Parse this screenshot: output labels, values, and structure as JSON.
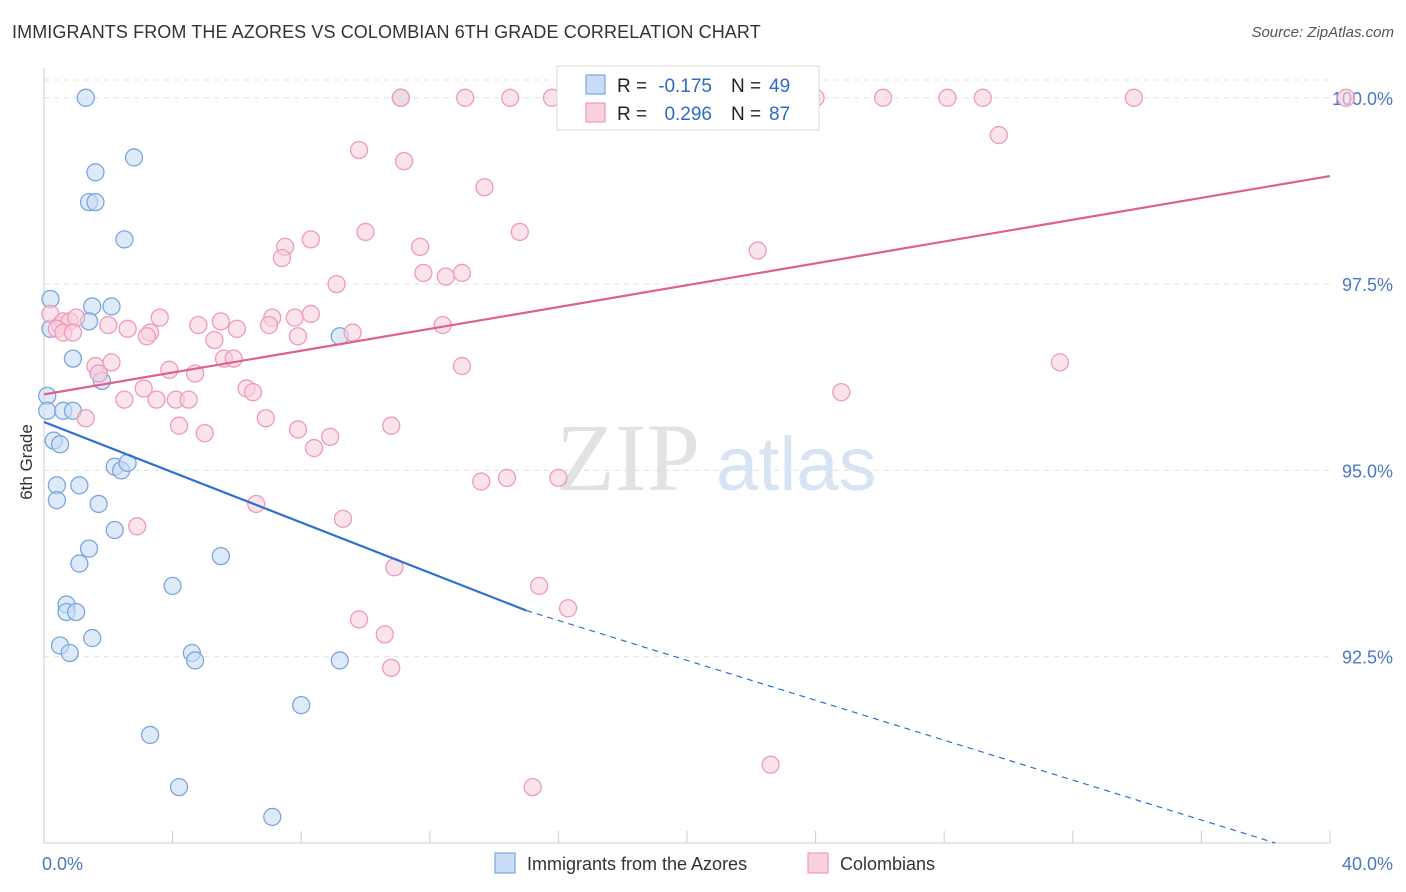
{
  "title": "IMMIGRANTS FROM THE AZORES VS COLOMBIAN 6TH GRADE CORRELATION CHART",
  "source": "Source: ZipAtlas.com",
  "watermark": {
    "zip": "ZIP",
    "atlas": "atlas"
  },
  "chart_data": {
    "type": "scatter",
    "ylabel": "6th Grade",
    "xlim": [
      0,
      40
    ],
    "ylim": [
      90.0,
      100.4
    ],
    "x_tick_labels": [
      {
        "value": 0,
        "label": "0.0%"
      },
      {
        "value": 40,
        "label": "40.0%"
      }
    ],
    "y_ticks": [
      {
        "value": 100.0,
        "label": "100.0%"
      },
      {
        "value": 97.5,
        "label": "97.5%"
      },
      {
        "value": 95.0,
        "label": "95.0%"
      },
      {
        "value": 92.5,
        "label": "92.5%"
      }
    ],
    "series": [
      {
        "name": "Immigrants from the Azores",
        "color": "#7aa6e0",
        "fill": "#c9dcf5",
        "line_color": "#2f6fd0",
        "R": "-0.175",
        "N": "49",
        "trend": {
          "x0": 0,
          "y0": 95.65,
          "x1": 15,
          "y1": 93.12,
          "dash_to_x": 38.3,
          "dash_to_y": 90.0
        },
        "points": [
          [
            1.3,
            100.0
          ],
          [
            11.1,
            100.0
          ],
          [
            2.8,
            99.2
          ],
          [
            1.6,
            99.0
          ],
          [
            1.4,
            98.6
          ],
          [
            1.6,
            98.6
          ],
          [
            2.5,
            98.1
          ],
          [
            0.2,
            97.3
          ],
          [
            1.5,
            97.2
          ],
          [
            2.1,
            97.2
          ],
          [
            0.2,
            96.9
          ],
          [
            1.4,
            97.0
          ],
          [
            9.2,
            96.8
          ],
          [
            0.9,
            96.5
          ],
          [
            1.7,
            96.3
          ],
          [
            1.8,
            96.2
          ],
          [
            0.1,
            96.0
          ],
          [
            0.1,
            95.8
          ],
          [
            0.6,
            95.8
          ],
          [
            0.9,
            95.8
          ],
          [
            0.3,
            95.4
          ],
          [
            0.5,
            95.35
          ],
          [
            2.2,
            95.05
          ],
          [
            2.4,
            95.0
          ],
          [
            2.6,
            95.1
          ],
          [
            0.4,
            94.8
          ],
          [
            1.1,
            94.8
          ],
          [
            0.4,
            94.6
          ],
          [
            1.7,
            94.55
          ],
          [
            2.2,
            94.2
          ],
          [
            1.4,
            93.95
          ],
          [
            1.1,
            93.75
          ],
          [
            5.5,
            93.85
          ],
          [
            4.0,
            93.45
          ],
          [
            0.7,
            93.2
          ],
          [
            0.7,
            93.1
          ],
          [
            1.0,
            93.1
          ],
          [
            1.5,
            92.75
          ],
          [
            0.5,
            92.65
          ],
          [
            0.8,
            92.55
          ],
          [
            4.6,
            92.55
          ],
          [
            4.7,
            92.45
          ],
          [
            9.2,
            92.45
          ],
          [
            8.0,
            91.85
          ],
          [
            3.3,
            91.45
          ],
          [
            4.2,
            90.75
          ],
          [
            7.1,
            90.35
          ]
        ]
      },
      {
        "name": "Colombians",
        "color": "#f09ab8",
        "fill": "#f9d0de",
        "line_color": "#e0608c",
        "R": "0.296",
        "N": "87",
        "trend": {
          "x0": 0,
          "y0": 96.02,
          "x1": 40,
          "y1": 98.95
        },
        "points": [
          [
            11.1,
            100.0
          ],
          [
            13.1,
            100.0
          ],
          [
            14.5,
            100.0
          ],
          [
            15.8,
            100.0
          ],
          [
            19.6,
            100.0
          ],
          [
            24.0,
            100.0
          ],
          [
            26.1,
            100.0
          ],
          [
            28.1,
            100.0
          ],
          [
            29.2,
            100.0
          ],
          [
            33.9,
            100.0
          ],
          [
            40.5,
            100.0
          ],
          [
            9.8,
            99.3
          ],
          [
            11.2,
            99.15
          ],
          [
            13.7,
            98.8
          ],
          [
            29.7,
            99.5
          ],
          [
            14.8,
            98.2
          ],
          [
            10.0,
            98.2
          ],
          [
            8.3,
            98.1
          ],
          [
            7.5,
            98.0
          ],
          [
            11.7,
            98.0
          ],
          [
            7.4,
            97.85
          ],
          [
            22.2,
            97.95
          ],
          [
            11.8,
            97.65
          ],
          [
            12.5,
            97.6
          ],
          [
            13.0,
            97.65
          ],
          [
            9.1,
            97.5
          ],
          [
            0.2,
            97.1
          ],
          [
            0.5,
            96.95
          ],
          [
            0.6,
            97.0
          ],
          [
            0.8,
            97.0
          ],
          [
            1.0,
            97.05
          ],
          [
            0.4,
            96.9
          ],
          [
            0.6,
            96.85
          ],
          [
            0.9,
            96.85
          ],
          [
            3.6,
            97.05
          ],
          [
            4.8,
            96.95
          ],
          [
            5.5,
            97.0
          ],
          [
            7.1,
            97.05
          ],
          [
            7.8,
            97.05
          ],
          [
            8.3,
            97.1
          ],
          [
            7.0,
            96.95
          ],
          [
            2.0,
            96.95
          ],
          [
            2.6,
            96.9
          ],
          [
            3.3,
            96.85
          ],
          [
            3.2,
            96.8
          ],
          [
            6.0,
            96.9
          ],
          [
            5.3,
            96.75
          ],
          [
            7.9,
            96.8
          ],
          [
            9.6,
            96.85
          ],
          [
            12.4,
            96.95
          ],
          [
            2.1,
            96.45
          ],
          [
            1.6,
            96.4
          ],
          [
            5.6,
            96.5
          ],
          [
            5.9,
            96.5
          ],
          [
            13.0,
            96.4
          ],
          [
            1.7,
            96.3
          ],
          [
            3.9,
            96.35
          ],
          [
            4.7,
            96.3
          ],
          [
            31.6,
            96.45
          ],
          [
            3.1,
            96.1
          ],
          [
            6.3,
            96.1
          ],
          [
            6.5,
            96.05
          ],
          [
            2.5,
            95.95
          ],
          [
            3.5,
            95.95
          ],
          [
            4.1,
            95.95
          ],
          [
            4.5,
            95.95
          ],
          [
            24.8,
            96.05
          ],
          [
            1.3,
            95.7
          ],
          [
            6.9,
            95.7
          ],
          [
            4.2,
            95.6
          ],
          [
            5.0,
            95.5
          ],
          [
            7.9,
            95.55
          ],
          [
            8.9,
            95.45
          ],
          [
            10.8,
            95.6
          ],
          [
            8.4,
            95.3
          ],
          [
            13.6,
            94.85
          ],
          [
            14.4,
            94.9
          ],
          [
            16.0,
            94.9
          ],
          [
            6.6,
            94.55
          ],
          [
            9.3,
            94.35
          ],
          [
            2.9,
            94.25
          ],
          [
            10.9,
            93.7
          ],
          [
            15.4,
            93.45
          ],
          [
            16.3,
            93.15
          ],
          [
            9.8,
            93.0
          ],
          [
            10.6,
            92.8
          ],
          [
            10.8,
            92.35
          ],
          [
            22.6,
            91.05
          ],
          [
            15.2,
            90.75
          ]
        ]
      }
    ],
    "legend": {
      "placement": "top-center",
      "entries": [
        {
          "r_label": "R =",
          "r_value": "-0.175",
          "n_label": "N =",
          "n_value": "49"
        },
        {
          "r_label": "R =",
          "r_value": "0.296",
          "n_label": "N =",
          "n_value": "87"
        }
      ]
    },
    "bottom_legend": [
      "Immigrants from the Azores",
      "Colombians"
    ]
  }
}
